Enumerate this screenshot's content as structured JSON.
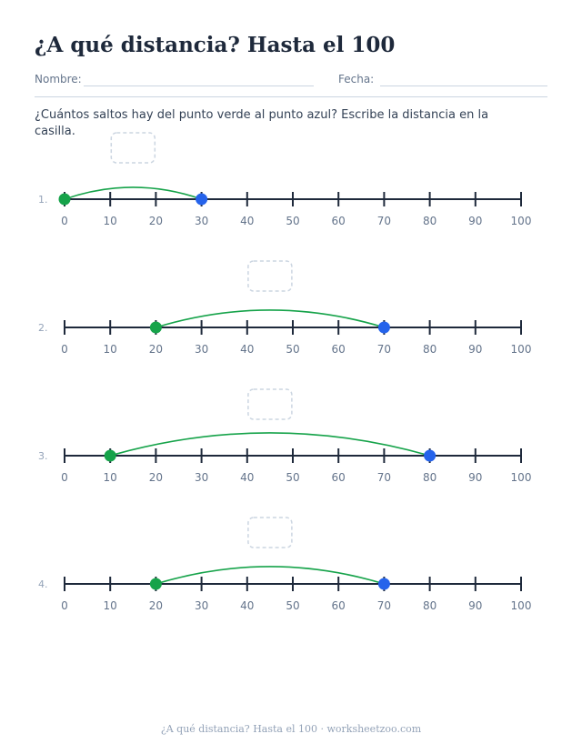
{
  "title": "¿A qué distancia? Hasta el 100",
  "fields": {
    "name_label": "Nombre:",
    "date_label": "Fecha:"
  },
  "instructions": "¿Cuántos saltos hay del punto verde al punto azul? Escribe la distancia en la casilla.",
  "axis": {
    "min": 0,
    "max": 100,
    "step": 10,
    "tick_labels": [
      "0",
      "10",
      "20",
      "30",
      "40",
      "50",
      "60",
      "70",
      "80",
      "90",
      "100"
    ]
  },
  "problems": [
    {
      "number": "1.",
      "start": 0,
      "end": 30
    },
    {
      "number": "2.",
      "start": 20,
      "end": 70
    },
    {
      "number": "3.",
      "start": 10,
      "end": 80
    },
    {
      "number": "4.",
      "start": 20,
      "end": 70
    }
  ],
  "colors": {
    "start_point": "#16a34a",
    "end_point": "#2563eb",
    "arc": "#16a34a",
    "axis": "#1e293b",
    "tick_label": "#64748b",
    "answer_box": "#cbd5e1"
  },
  "footer": "¿A qué distancia? Hasta el 100 · worksheetzoo.com"
}
